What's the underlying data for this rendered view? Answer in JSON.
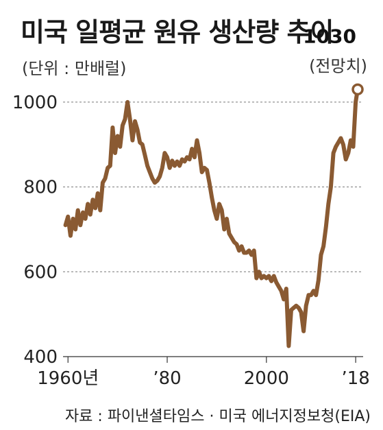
{
  "chart_data": {
    "type": "line",
    "title": "미국 일평균 원유 생산량 추이",
    "unit_note": "(단위 : 만배럴)",
    "source": "자료 : 파이낸셜타임스 · 미국 에너지정보청(EIA)",
    "ylim": [
      400,
      1050
    ],
    "xlim": [
      1959,
      2019.5
    ],
    "yticks": [
      {
        "value": 400,
        "label": "400"
      },
      {
        "value": 600,
        "label": "600"
      },
      {
        "value": 800,
        "label": "800"
      },
      {
        "value": 1000,
        "label": "1000"
      }
    ],
    "xticks": [
      {
        "value": 1960,
        "label": "1960년"
      },
      {
        "value": 1980,
        "label": "’80"
      },
      {
        "value": 2000,
        "label": "2000"
      },
      {
        "value": 2018,
        "label": "’18"
      }
    ],
    "series": [
      {
        "color": "#8a5a32",
        "points": [
          [
            1959.5,
            710
          ],
          [
            1960,
            730
          ],
          [
            1960.5,
            685
          ],
          [
            1961,
            725
          ],
          [
            1961.5,
            700
          ],
          [
            1962,
            745
          ],
          [
            1962.5,
            710
          ],
          [
            1963,
            740
          ],
          [
            1963.5,
            725
          ],
          [
            1964,
            760
          ],
          [
            1964.5,
            735
          ],
          [
            1965,
            770
          ],
          [
            1965.5,
            750
          ],
          [
            1966,
            785
          ],
          [
            1966.5,
            745
          ],
          [
            1967,
            810
          ],
          [
            1967.5,
            820
          ],
          [
            1968,
            845
          ],
          [
            1968.5,
            850
          ],
          [
            1969,
            940
          ],
          [
            1969.5,
            880
          ],
          [
            1970,
            920
          ],
          [
            1970.5,
            895
          ],
          [
            1971,
            945
          ],
          [
            1971.5,
            960
          ],
          [
            1972,
            1000
          ],
          [
            1972.5,
            960
          ],
          [
            1973,
            910
          ],
          [
            1973.5,
            955
          ],
          [
            1974,
            935
          ],
          [
            1974.5,
            905
          ],
          [
            1975,
            900
          ],
          [
            1975.5,
            875
          ],
          [
            1976,
            850
          ],
          [
            1976.5,
            835
          ],
          [
            1977,
            820
          ],
          [
            1977.5,
            810
          ],
          [
            1978,
            815
          ],
          [
            1978.5,
            825
          ],
          [
            1979,
            845
          ],
          [
            1979.5,
            880
          ],
          [
            1980,
            870
          ],
          [
            1980.5,
            845
          ],
          [
            1981,
            862
          ],
          [
            1981.5,
            850
          ],
          [
            1982,
            860
          ],
          [
            1982.5,
            850
          ],
          [
            1983,
            865
          ],
          [
            1983.5,
            860
          ],
          [
            1984,
            870
          ],
          [
            1984.5,
            865
          ],
          [
            1985,
            890
          ],
          [
            1985.5,
            870
          ],
          [
            1986,
            910
          ],
          [
            1986.5,
            880
          ],
          [
            1987,
            835
          ],
          [
            1987.5,
            845
          ],
          [
            1988,
            840
          ],
          [
            1988.5,
            810
          ],
          [
            1989,
            775
          ],
          [
            1989.5,
            745
          ],
          [
            1990,
            725
          ],
          [
            1990.5,
            760
          ],
          [
            1991,
            745
          ],
          [
            1991.5,
            700
          ],
          [
            1992,
            725
          ],
          [
            1992.5,
            690
          ],
          [
            1993,
            680
          ],
          [
            1993.5,
            670
          ],
          [
            1994,
            665
          ],
          [
            1994.5,
            650
          ],
          [
            1995,
            660
          ],
          [
            1995.5,
            645
          ],
          [
            1996,
            645
          ],
          [
            1996.5,
            650
          ],
          [
            1997,
            640
          ],
          [
            1997.5,
            650
          ],
          [
            1998,
            585
          ],
          [
            1998.5,
            600
          ],
          [
            1999,
            585
          ],
          [
            1999.5,
            590
          ],
          [
            2000,
            585
          ],
          [
            2000.5,
            590
          ],
          [
            2001,
            578
          ],
          [
            2001.5,
            590
          ],
          [
            2002,
            575
          ],
          [
            2002.5,
            565
          ],
          [
            2003,
            555
          ],
          [
            2003.5,
            535
          ],
          [
            2004,
            560
          ],
          [
            2004.5,
            425
          ],
          [
            2005,
            510
          ],
          [
            2005.5,
            515
          ],
          [
            2006,
            520
          ],
          [
            2006.5,
            515
          ],
          [
            2007,
            505
          ],
          [
            2007.5,
            460
          ],
          [
            2008,
            520
          ],
          [
            2008.5,
            545
          ],
          [
            2009,
            545
          ],
          [
            2009.5,
            555
          ],
          [
            2010,
            545
          ],
          [
            2010.5,
            580
          ],
          [
            2011,
            640
          ],
          [
            2011.5,
            660
          ],
          [
            2012,
            705
          ],
          [
            2012.5,
            760
          ],
          [
            2013,
            800
          ],
          [
            2013.5,
            880
          ],
          [
            2014,
            895
          ],
          [
            2014.5,
            905
          ],
          [
            2015,
            915
          ],
          [
            2015.5,
            900
          ],
          [
            2016,
            865
          ],
          [
            2016.5,
            880
          ],
          [
            2017,
            910
          ],
          [
            2017.5,
            895
          ],
          [
            2018,
            1000
          ],
          [
            2018.4,
            1030
          ]
        ]
      }
    ],
    "annotation": {
      "x": 2018.4,
      "y": 1030,
      "value_label": "1030",
      "note": "(전망치)"
    },
    "grid": "dashed horizontal at y ticks"
  }
}
